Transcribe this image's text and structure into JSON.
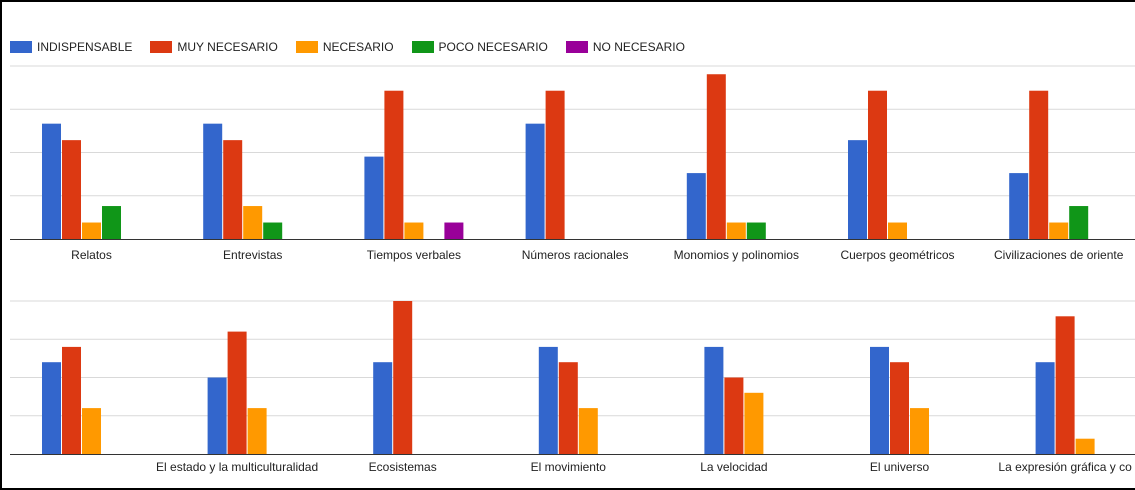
{
  "legend": [
    {
      "label": "INDISPENSABLE",
      "color": "#3366cc"
    },
    {
      "label": "MUY NECESARIO",
      "color": "#dc3912"
    },
    {
      "label": "NECESARIO",
      "color": "#ff9900"
    },
    {
      "label": "POCO NECESARIO",
      "color": "#109618"
    },
    {
      "label": "NO NECESARIO",
      "color": "#990099"
    }
  ],
  "chart_data": [
    {
      "type": "bar",
      "title": "",
      "xlabel": "",
      "ylabel": "",
      "ylim": [
        0,
        10.5
      ],
      "grid": true,
      "legend_position": "top-left",
      "categories": [
        "Relatos",
        "Entrevistas",
        "Tiempos verbales",
        "Números racionales",
        "Monomios y polinomios",
        "Cuerpos geométricos",
        "Civilizaciones de oriente"
      ],
      "series": [
        {
          "name": "INDISPENSABLE",
          "values": [
            7,
            7,
            5,
            7,
            4,
            6,
            4
          ]
        },
        {
          "name": "MUY NECESARIO",
          "values": [
            6,
            6,
            9,
            9,
            10,
            9,
            9
          ]
        },
        {
          "name": "NECESARIO",
          "values": [
            1,
            2,
            1,
            0,
            1,
            1,
            1
          ]
        },
        {
          "name": "POCO NECESARIO",
          "values": [
            2,
            1,
            0,
            0,
            1,
            0,
            2
          ]
        },
        {
          "name": "NO NECESARIO",
          "values": [
            0,
            0,
            1,
            0,
            0,
            0,
            0
          ]
        }
      ]
    },
    {
      "type": "bar",
      "title": "",
      "xlabel": "",
      "ylabel": "",
      "ylim": [
        0,
        10
      ],
      "grid": true,
      "legend_position": "none",
      "categories": [
        "",
        "El estado y la multiculturalidad",
        "Ecosistemas",
        "El movimiento",
        "La velocidad",
        "El universo",
        "La expresión gráfica y co"
      ],
      "series": [
        {
          "name": "INDISPENSABLE",
          "values": [
            6,
            5,
            6,
            7,
            7,
            7,
            6
          ]
        },
        {
          "name": "MUY NECESARIO",
          "values": [
            7,
            8,
            10,
            6,
            5,
            6,
            9
          ]
        },
        {
          "name": "NECESARIO",
          "values": [
            3,
            3,
            0,
            3,
            4,
            3,
            1
          ]
        },
        {
          "name": "POCO NECESARIO",
          "values": [
            0,
            0,
            0,
            0,
            0,
            0,
            0
          ]
        },
        {
          "name": "NO NECESARIO",
          "values": [
            0,
            0,
            0,
            0,
            0,
            0,
            0
          ]
        }
      ]
    }
  ]
}
